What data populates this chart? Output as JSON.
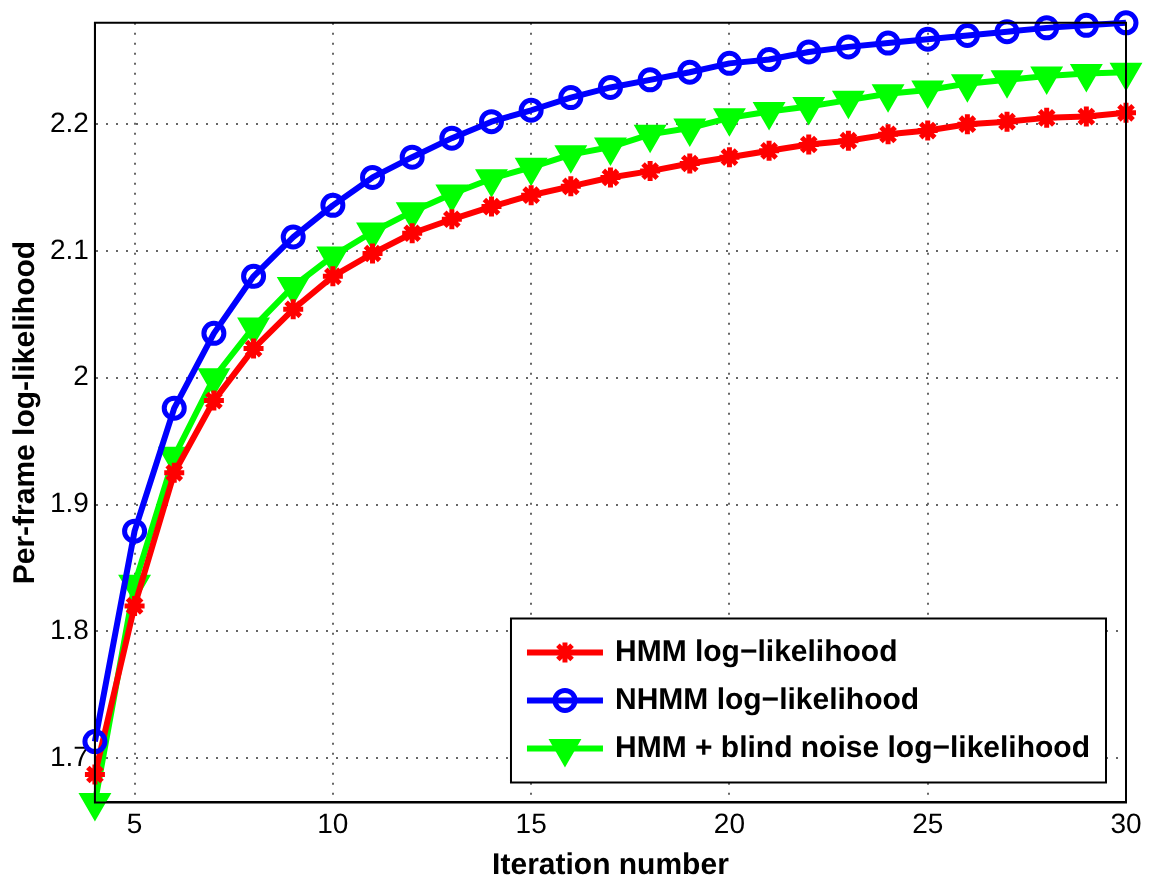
{
  "chart_data": {
    "type": "line",
    "xlabel": "Iteration number",
    "ylabel": "Per-frame log-likelihood",
    "x": [
      4,
      5,
      6,
      7,
      8,
      9,
      10,
      11,
      12,
      13,
      14,
      15,
      16,
      17,
      18,
      19,
      20,
      21,
      22,
      23,
      24,
      25,
      26,
      27,
      28,
      29,
      30
    ],
    "xlim": [
      4,
      30
    ],
    "xticks": [
      5,
      10,
      15,
      20,
      25,
      30
    ],
    "ylim": [
      1.665,
      2.28
    ],
    "yticks": [
      1.7,
      1.8,
      1.9,
      2,
      2.1,
      2.2
    ],
    "grid": true,
    "legend": "bottom right",
    "series": [
      {
        "name": "HMM log−likelihood",
        "color": "#ff0000",
        "marker": "cross",
        "values": [
          1.687,
          1.82,
          1.925,
          1.982,
          2.023,
          2.054,
          2.08,
          2.098,
          2.114,
          2.125,
          2.135,
          2.144,
          2.151,
          2.158,
          2.163,
          2.169,
          2.174,
          2.179,
          2.184,
          2.187,
          2.192,
          2.195,
          2.2,
          2.202,
          2.205,
          2.206,
          2.209
        ]
      },
      {
        "name": "NHMM log−likelihood",
        "color": "#0000ff",
        "marker": "circle",
        "values": [
          1.713,
          1.879,
          1.976,
          2.035,
          2.08,
          2.111,
          2.136,
          2.158,
          2.174,
          2.189,
          2.202,
          2.211,
          2.221,
          2.229,
          2.235,
          2.241,
          2.248,
          2.251,
          2.257,
          2.261,
          2.264,
          2.267,
          2.27,
          2.273,
          2.276,
          2.278,
          2.28
        ]
      },
      {
        "name": "HMM + blind noise log−likelihood",
        "color": "#00ff00",
        "marker": "triangle",
        "values": [
          1.665,
          1.837,
          1.938,
          2.0,
          2.04,
          2.072,
          2.096,
          2.115,
          2.131,
          2.145,
          2.157,
          2.166,
          2.176,
          2.182,
          2.192,
          2.197,
          2.205,
          2.21,
          2.214,
          2.219,
          2.224,
          2.227,
          2.232,
          2.235,
          2.238,
          2.24,
          2.241
        ]
      }
    ]
  }
}
